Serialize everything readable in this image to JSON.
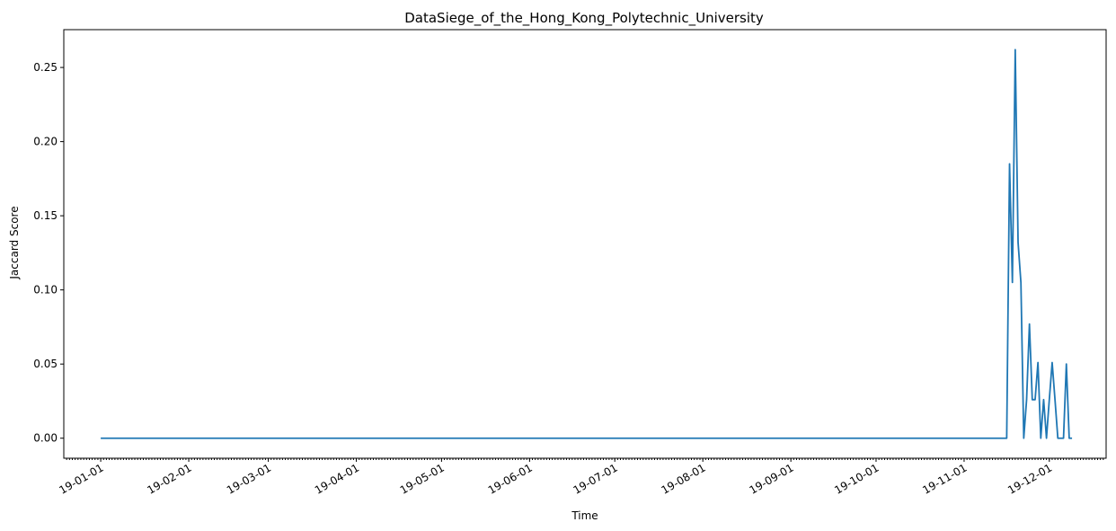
{
  "chart_data": {
    "type": "line",
    "title": "DataSiege_of_the_Hong_Kong_Polytechnic_University",
    "xlabel": "Time",
    "ylabel": "Jaccard Score",
    "xlim": [
      "2018-12-19",
      "2019-12-21"
    ],
    "ylim": [
      -0.0135,
      0.2755
    ],
    "yticks": [
      0.0,
      0.05,
      0.1,
      0.15,
      0.2,
      0.25
    ],
    "ytick_labels": [
      "0.00",
      "0.05",
      "0.10",
      "0.15",
      "0.20",
      "0.25"
    ],
    "xticks": [
      "2019-01-01",
      "2019-02-01",
      "2019-03-01",
      "2019-04-01",
      "2019-05-01",
      "2019-06-01",
      "2019-07-01",
      "2019-08-01",
      "2019-09-01",
      "2019-10-01",
      "2019-11-01",
      "2019-12-01"
    ],
    "xtick_labels": [
      "19-01-01",
      "19-02-01",
      "19-03-01",
      "19-04-01",
      "19-05-01",
      "19-06-01",
      "19-07-01",
      "19-08-01",
      "19-09-01",
      "19-10-01",
      "19-11-01",
      "19-12-01"
    ],
    "grid": false,
    "colors": {
      "line": "#1f77b4"
    },
    "series": [
      {
        "x": [
          "2019-01-01",
          "2019-11-16",
          "2019-11-17",
          "2019-11-18",
          "2019-11-19",
          "2019-11-20",
          "2019-11-21",
          "2019-11-22",
          "2019-11-23",
          "2019-11-24",
          "2019-11-25",
          "2019-11-26",
          "2019-11-27",
          "2019-11-28",
          "2019-11-29",
          "2019-11-30",
          "2019-12-01",
          "2019-12-02",
          "2019-12-03",
          "2019-12-04",
          "2019-12-05",
          "2019-12-06",
          "2019-12-07",
          "2019-12-08",
          "2019-12-09"
        ],
        "values": [
          0.0,
          0.0,
          0.185,
          0.105,
          0.262,
          0.132,
          0.105,
          0.0,
          0.026,
          0.077,
          0.026,
          0.026,
          0.051,
          0.0,
          0.026,
          0.0,
          0.026,
          0.051,
          0.026,
          0.0,
          0.0,
          0.0,
          0.05,
          0.0,
          0.0
        ]
      }
    ]
  }
}
